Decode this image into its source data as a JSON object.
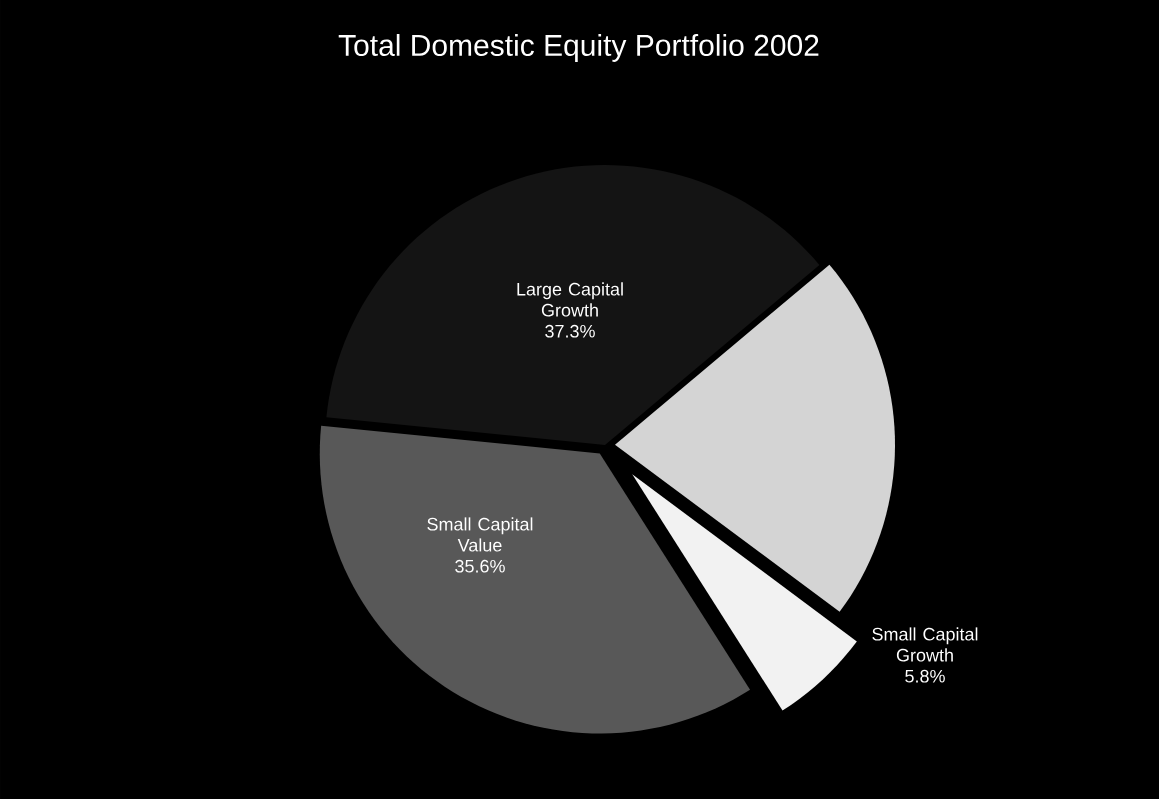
{
  "chart_data": {
    "type": "pie",
    "title": "Total Domestic Equity Portfolio 2002",
    "categories": [
      "Large Capital Growth",
      null,
      "Small Capital Growth",
      "Small Capital Value"
    ],
    "values": [
      37.3,
      21.3,
      5.8,
      35.6
    ],
    "value_labels": [
      "37.3%",
      null,
      "5.8%",
      "35.6%"
    ],
    "colors": [
      "#141414",
      "#d4d4d4",
      "#f2f2f2",
      "#585858"
    ]
  }
}
